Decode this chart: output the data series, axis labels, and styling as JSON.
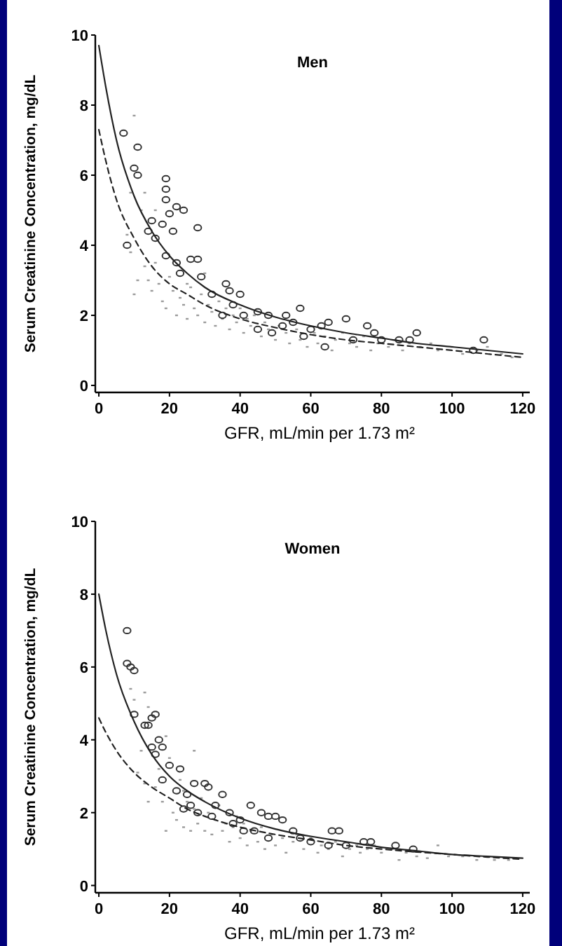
{
  "chart_data": [
    {
      "type": "scatter",
      "title": "Men",
      "xlabel": "GFR, mL/min per 1.73 m²",
      "ylabel": "Serum Creatinine Concentration, mg/dL",
      "xlim": [
        -1,
        122
      ],
      "ylim": [
        -0.2,
        10
      ],
      "xticks": [
        0,
        20,
        40,
        60,
        80,
        100,
        120
      ],
      "yticks": [
        0,
        2,
        4,
        6,
        8,
        10
      ],
      "series": [
        {
          "marker": "square",
          "color": "#9a9a9a",
          "x": [
            10,
            9,
            12,
            8,
            9,
            11,
            10,
            13,
            14,
            15,
            16,
            17,
            18,
            19,
            20,
            21,
            22,
            23,
            24,
            25,
            26,
            27,
            28,
            29,
            30,
            31,
            32,
            33,
            34,
            35,
            36,
            37,
            38,
            39,
            40,
            41,
            42,
            43,
            44,
            46,
            47,
            48,
            50,
            51,
            53,
            54,
            56,
            57,
            59,
            61,
            62,
            64,
            66,
            67,
            69,
            71,
            73,
            75,
            77,
            79,
            82,
            84,
            86,
            88,
            91,
            94,
            96,
            100,
            103,
            107,
            110,
            114,
            117,
            16,
            13,
            25,
            30
          ],
          "values": [
            7.7,
            5.5,
            5.0,
            4.3,
            3.8,
            3.0,
            2.6,
            3.4,
            3.0,
            2.7,
            3.5,
            2.9,
            2.4,
            2.2,
            3.1,
            2.7,
            2.0,
            2.5,
            2.3,
            1.9,
            2.8,
            2.2,
            2.0,
            2.6,
            1.8,
            2.3,
            2.1,
            1.7,
            2.4,
            1.9,
            2.2,
            1.6,
            2.0,
            1.8,
            2.2,
            1.5,
            1.9,
            1.7,
            2.0,
            1.4,
            1.8,
            1.6,
            1.3,
            1.7,
            1.5,
            1.2,
            1.6,
            1.3,
            1.1,
            1.5,
            1.2,
            1.4,
            1.0,
            1.3,
            1.5,
            1.2,
            1.1,
            1.4,
            1.0,
            1.2,
            1.1,
            1.3,
            1.0,
            1.2,
            1.1,
            1.2,
            1.0,
            1.1,
            0.9,
            1.0,
            1.1,
            0.9,
            0.8,
            5.0,
            5.5,
            2.9,
            3.2
          ]
        },
        {
          "marker": "circle",
          "color": "#333333",
          "x": [
            7,
            11,
            10,
            11,
            8,
            19,
            19,
            19,
            22,
            24,
            20,
            21,
            18,
            28,
            15,
            14,
            16,
            19,
            22,
            26,
            28,
            23,
            29,
            32,
            36,
            37,
            40,
            38,
            35,
            41,
            45,
            48,
            53,
            57,
            55,
            49,
            45,
            60,
            63,
            65,
            70,
            76,
            78,
            64,
            85,
            90,
            88,
            109,
            106,
            80,
            72,
            58,
            52
          ],
          "values": [
            7.2,
            6.8,
            6.2,
            6.0,
            4.0,
            5.9,
            5.6,
            5.3,
            5.1,
            5.0,
            4.9,
            4.4,
            4.6,
            4.5,
            4.7,
            4.4,
            4.2,
            3.7,
            3.5,
            3.6,
            3.6,
            3.2,
            3.1,
            2.6,
            2.9,
            2.7,
            2.6,
            2.3,
            2.0,
            2.0,
            2.1,
            2.0,
            2.0,
            2.2,
            1.8,
            1.5,
            1.6,
            1.6,
            1.7,
            1.8,
            1.9,
            1.7,
            1.5,
            1.1,
            1.3,
            1.5,
            1.3,
            1.3,
            1.0,
            1.3,
            1.3,
            1.4,
            1.7
          ]
        },
        {
          "type": "line",
          "line_style": "solid",
          "color": "#222222",
          "x": [
            0,
            2,
            5,
            10,
            15,
            20,
            25,
            30,
            40,
            50,
            60,
            70,
            80,
            90,
            100,
            110,
            120
          ],
          "values": [
            9.7,
            8.5,
            7.0,
            5.4,
            4.4,
            3.7,
            3.2,
            2.8,
            2.3,
            1.95,
            1.7,
            1.5,
            1.35,
            1.2,
            1.1,
            1.0,
            0.9
          ]
        },
        {
          "type": "line",
          "line_style": "dashed",
          "color": "#222222",
          "x": [
            0,
            2,
            5,
            10,
            15,
            20,
            25,
            30,
            40,
            50,
            60,
            70,
            80,
            90,
            100,
            110,
            120
          ],
          "values": [
            7.3,
            6.4,
            5.3,
            4.2,
            3.4,
            2.9,
            2.6,
            2.3,
            1.9,
            1.65,
            1.45,
            1.3,
            1.2,
            1.1,
            1.0,
            0.9,
            0.8
          ]
        }
      ]
    },
    {
      "type": "scatter",
      "title": "Women",
      "xlabel": "GFR, mL/min per 1.73 m²",
      "ylabel": "Serum Creatinine Concentration, mg/dL",
      "xlim": [
        -1,
        122
      ],
      "ylim": [
        -0.2,
        10
      ],
      "xticks": [
        0,
        20,
        40,
        60,
        80,
        100,
        120
      ],
      "yticks": [
        0,
        2,
        4,
        6,
        8,
        10
      ],
      "series": [
        {
          "marker": "square",
          "color": "#9a9a9a",
          "x": [
            9,
            10,
            13,
            14,
            12,
            11,
            13,
            14,
            16,
            17,
            18,
            19,
            20,
            21,
            22,
            23,
            24,
            25,
            26,
            27,
            28,
            29,
            30,
            31,
            32,
            33,
            34,
            35,
            36,
            37,
            38,
            39,
            40,
            41,
            42,
            43,
            45,
            46,
            47,
            49,
            50,
            52,
            53,
            55,
            56,
            58,
            60,
            62,
            63,
            65,
            67,
            69,
            71,
            73,
            74,
            76,
            78,
            80,
            83,
            85,
            87,
            90,
            93,
            96,
            99,
            103,
            107,
            112,
            116,
            24,
            19,
            27
          ],
          "values": [
            5.4,
            5.1,
            5.3,
            4.9,
            3.7,
            3.1,
            2.8,
            2.3,
            2.7,
            3.2,
            2.3,
            1.5,
            3.5,
            2.0,
            1.8,
            2.9,
            1.6,
            2.3,
            1.5,
            2.1,
            1.7,
            2.4,
            1.5,
            2.0,
            1.4,
            1.8,
            2.2,
            1.5,
            1.7,
            1.2,
            1.6,
            1.9,
            1.3,
            1.7,
            1.1,
            1.5,
            1.2,
            1.6,
            1.0,
            1.4,
            1.1,
            1.3,
            0.9,
            1.2,
            1.4,
            1.0,
            1.3,
            0.9,
            1.1,
            1.0,
            1.2,
            0.8,
            1.0,
            1.1,
            0.9,
            1.0,
            1.1,
            0.9,
            1.0,
            0.7,
            0.9,
            0.8,
            0.75,
            1.1,
            0.8,
            0.8,
            0.7,
            0.7,
            0.7,
            2.6,
            4.1,
            3.7
          ]
        },
        {
          "marker": "circle",
          "color": "#333333",
          "x": [
            8,
            8,
            9,
            10,
            10,
            13,
            14,
            15,
            16,
            17,
            18,
            15,
            16,
            20,
            23,
            18,
            22,
            25,
            27,
            30,
            31,
            35,
            26,
            24,
            28,
            32,
            37,
            40,
            43,
            46,
            48,
            50,
            52,
            41,
            44,
            48,
            55,
            57,
            60,
            66,
            68,
            65,
            70,
            75,
            77,
            84,
            89,
            38,
            33
          ],
          "values": [
            7.0,
            6.1,
            6.0,
            5.9,
            4.7,
            4.4,
            4.4,
            4.6,
            4.7,
            4.0,
            3.8,
            3.8,
            3.6,
            3.3,
            3.2,
            2.9,
            2.6,
            2.5,
            2.8,
            2.8,
            2.7,
            2.5,
            2.2,
            2.1,
            2.0,
            1.9,
            2.0,
            1.8,
            2.2,
            2.0,
            1.9,
            1.9,
            1.8,
            1.5,
            1.5,
            1.3,
            1.5,
            1.3,
            1.2,
            1.5,
            1.5,
            1.1,
            1.1,
            1.2,
            1.2,
            1.1,
            1.0,
            1.7,
            2.2
          ]
        },
        {
          "type": "line",
          "line_style": "solid",
          "color": "#222222",
          "x": [
            0,
            2,
            5,
            10,
            15,
            20,
            25,
            30,
            40,
            50,
            60,
            70,
            80,
            90,
            100,
            110,
            120
          ],
          "values": [
            8.0,
            7.0,
            5.8,
            4.5,
            3.6,
            3.0,
            2.6,
            2.3,
            1.85,
            1.55,
            1.35,
            1.2,
            1.05,
            0.95,
            0.85,
            0.8,
            0.75
          ]
        },
        {
          "type": "line",
          "line_style": "dashed",
          "color": "#222222",
          "x": [
            0,
            2,
            5,
            10,
            15,
            20,
            25,
            30,
            40,
            50,
            60,
            70,
            80,
            90,
            100,
            110,
            120
          ],
          "values": [
            4.6,
            4.2,
            3.7,
            3.1,
            2.7,
            2.4,
            2.1,
            1.9,
            1.6,
            1.4,
            1.25,
            1.1,
            1.0,
            0.92,
            0.85,
            0.78,
            0.72
          ]
        }
      ]
    }
  ]
}
